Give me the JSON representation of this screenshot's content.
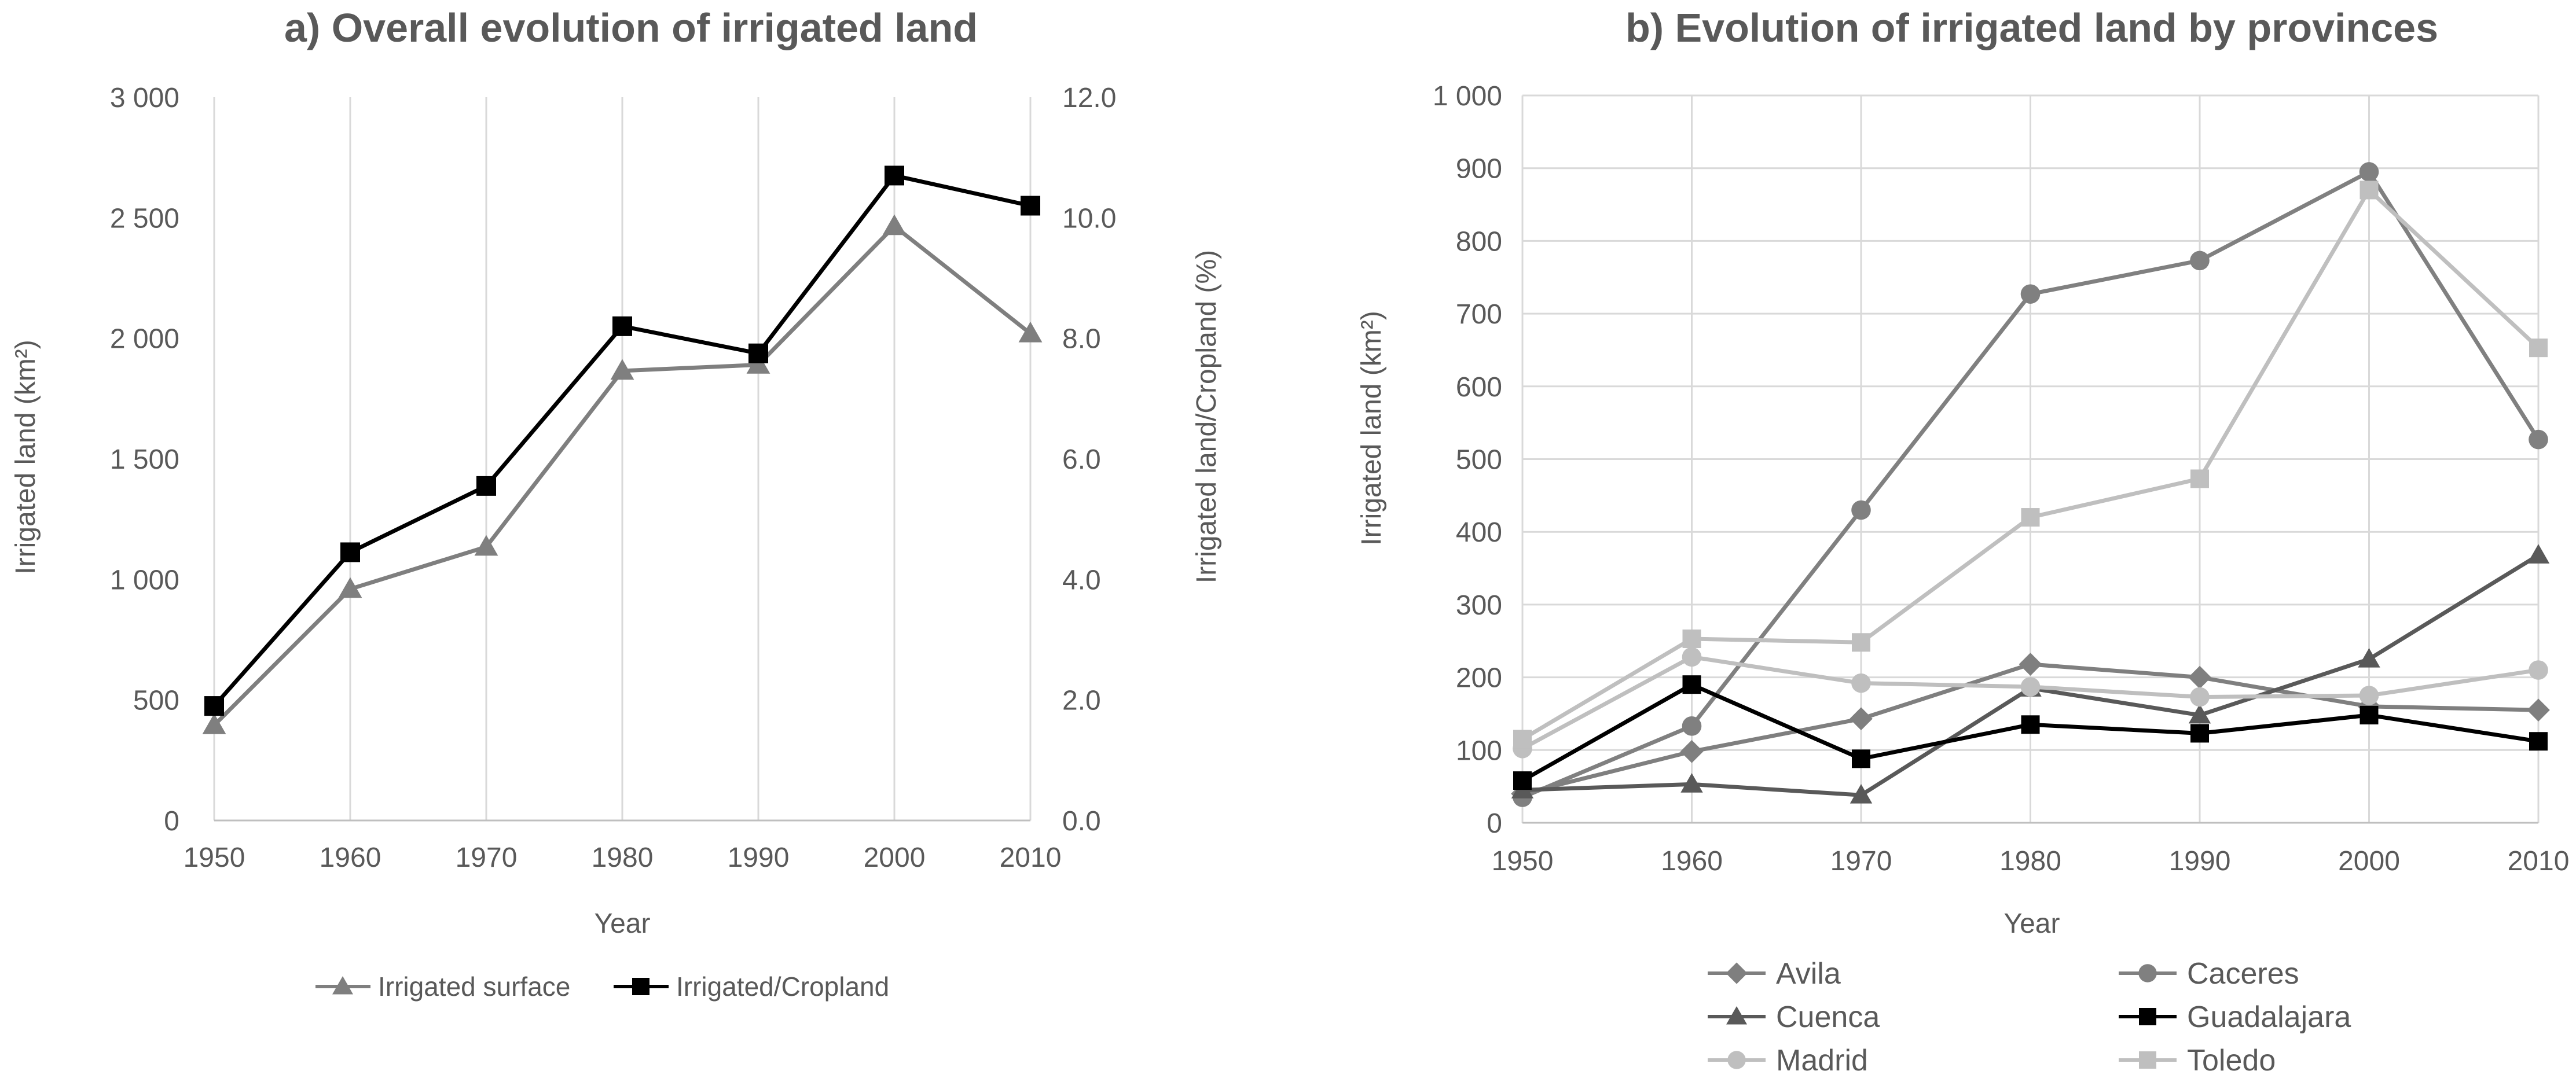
{
  "chart_data": [
    {
      "type": "line",
      "title": "a) Overall evolution of irrigated land",
      "xlabel": "Year",
      "ylabel": "Irrigated land (km²)",
      "y2label": "Irrigated land/Cropland (%)",
      "x": [
        1950,
        1960,
        1970,
        1980,
        1990,
        2000,
        2010
      ],
      "ylim": [
        0,
        3000
      ],
      "y2lim": [
        0,
        12
      ],
      "yticks": [
        "0",
        "500",
        "1 000",
        "1 500",
        "2 000",
        "2 500",
        "3 000"
      ],
      "y2ticks": [
        "0.0",
        "2.0",
        "4.0",
        "6.0",
        "8.0",
        "10.0",
        "12.0"
      ],
      "xticks": [
        "1950",
        "1960",
        "1970",
        "1980",
        "1990",
        "2000",
        "2010"
      ],
      "grid": "vertical",
      "legend_position": "bottom",
      "series": [
        {
          "name": "Irrigated surface",
          "axis": "left",
          "marker": "triangle",
          "color": "#7f7f7f",
          "values": [
            395,
            960,
            1135,
            1865,
            1890,
            2465,
            2020
          ]
        },
        {
          "name": "Irrigated/Cropland",
          "axis": "right",
          "marker": "square",
          "color": "#000000",
          "values": [
            1.9,
            4.45,
            5.55,
            8.2,
            7.75,
            10.7,
            10.2
          ]
        }
      ]
    },
    {
      "type": "line",
      "title": "b) Evolution of irrigated land by provinces",
      "xlabel": "Year",
      "ylabel": "Irrigated land (km²)",
      "x": [
        1950,
        1960,
        1970,
        1980,
        1990,
        2000,
        2010
      ],
      "ylim": [
        0,
        1000
      ],
      "yticks": [
        "0",
        "100",
        "200",
        "300",
        "400",
        "500",
        "600",
        "700",
        "800",
        "900",
        "1 000"
      ],
      "xticks": [
        "1950",
        "1960",
        "1970",
        "1980",
        "1990",
        "2000",
        "2010"
      ],
      "grid": "both",
      "legend_position": "bottom",
      "series": [
        {
          "name": "Avila",
          "marker": "diamond",
          "color": "#7f7f7f",
          "values": [
            40,
            98,
            143,
            218,
            200,
            160,
            155
          ]
        },
        {
          "name": "Caceres",
          "marker": "circle",
          "color": "#808080",
          "values": [
            35,
            133,
            430,
            727,
            773,
            895,
            527
          ]
        },
        {
          "name": "Cuenca",
          "marker": "triangle",
          "color": "#595959",
          "values": [
            45,
            53,
            38,
            185,
            148,
            225,
            368
          ]
        },
        {
          "name": "Guadalajara",
          "marker": "square",
          "color": "#000000",
          "values": [
            58,
            190,
            88,
            135,
            123,
            148,
            112
          ]
        },
        {
          "name": "Madrid",
          "marker": "circle",
          "color": "#bfbfbf",
          "values": [
            102,
            228,
            192,
            187,
            173,
            175,
            210
          ]
        },
        {
          "name": "Toledo",
          "marker": "square",
          "color": "#bfbfbf",
          "values": [
            115,
            253,
            248,
            420,
            473,
            870,
            653
          ]
        }
      ]
    }
  ]
}
